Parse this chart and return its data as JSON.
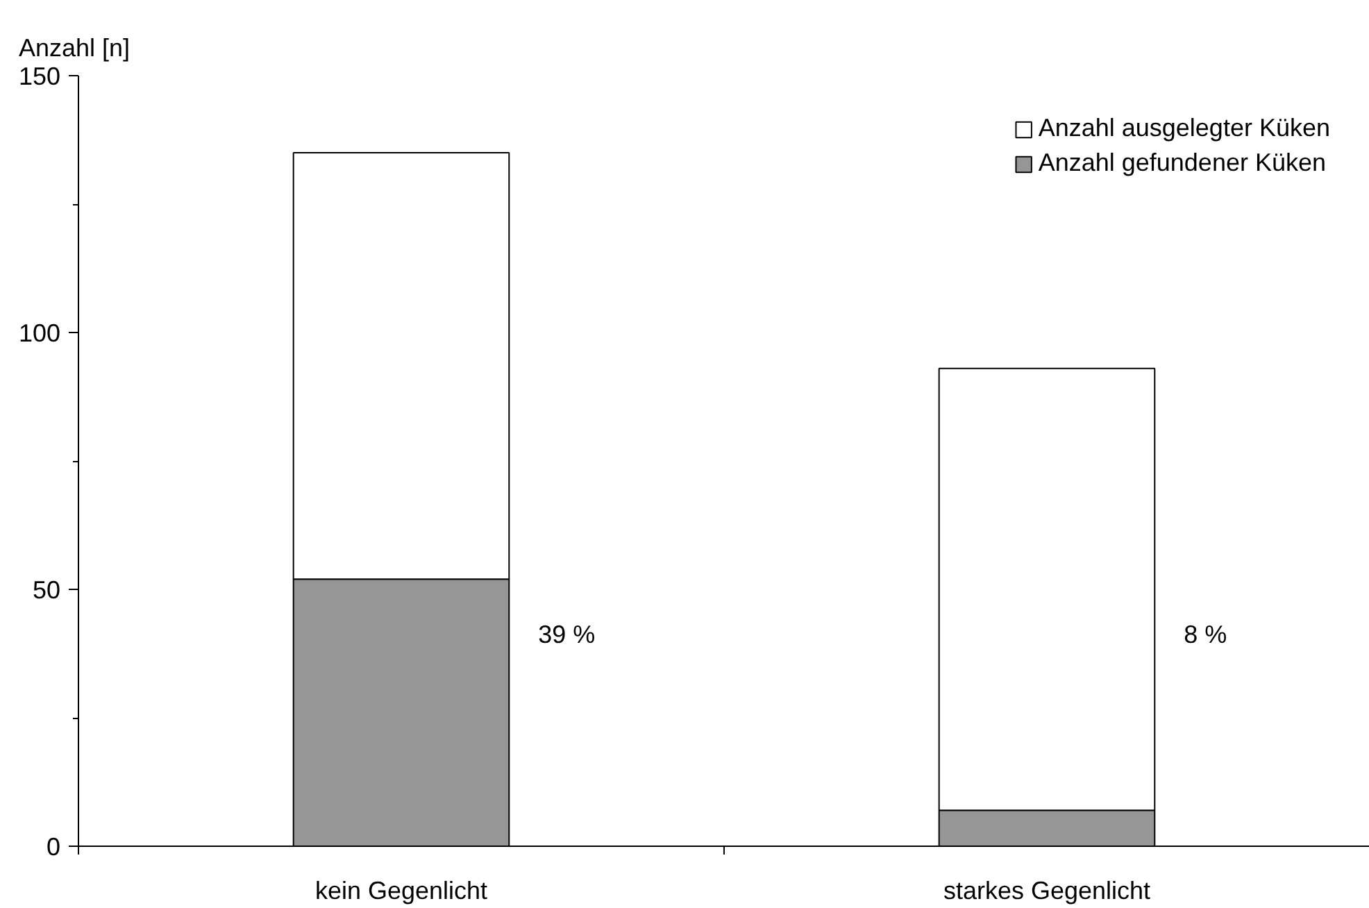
{
  "chart_data": {
    "type": "bar",
    "ylabel": "Anzahl [n]",
    "categories": [
      "kein Gegenlicht",
      "starkes Gegenlicht"
    ],
    "stacked": true,
    "series": [
      {
        "name": "Anzahl gefundener Küken",
        "color": "#969696",
        "values": [
          52,
          7
        ]
      },
      {
        "name": "Anzahl ausgelegter Küken",
        "color": "#ffffff",
        "values": [
          83,
          86
        ]
      }
    ],
    "ylim": [
      0,
      150
    ],
    "yticks": [
      0,
      {
        "value": 25,
        "label": null
      },
      50,
      {
        "value": 75,
        "label": null
      },
      100,
      {
        "value": 125,
        "label": null
      },
      150
    ],
    "annotations": [
      "39 %",
      "8 %"
    ],
    "legend": "top right",
    "grid": false
  }
}
